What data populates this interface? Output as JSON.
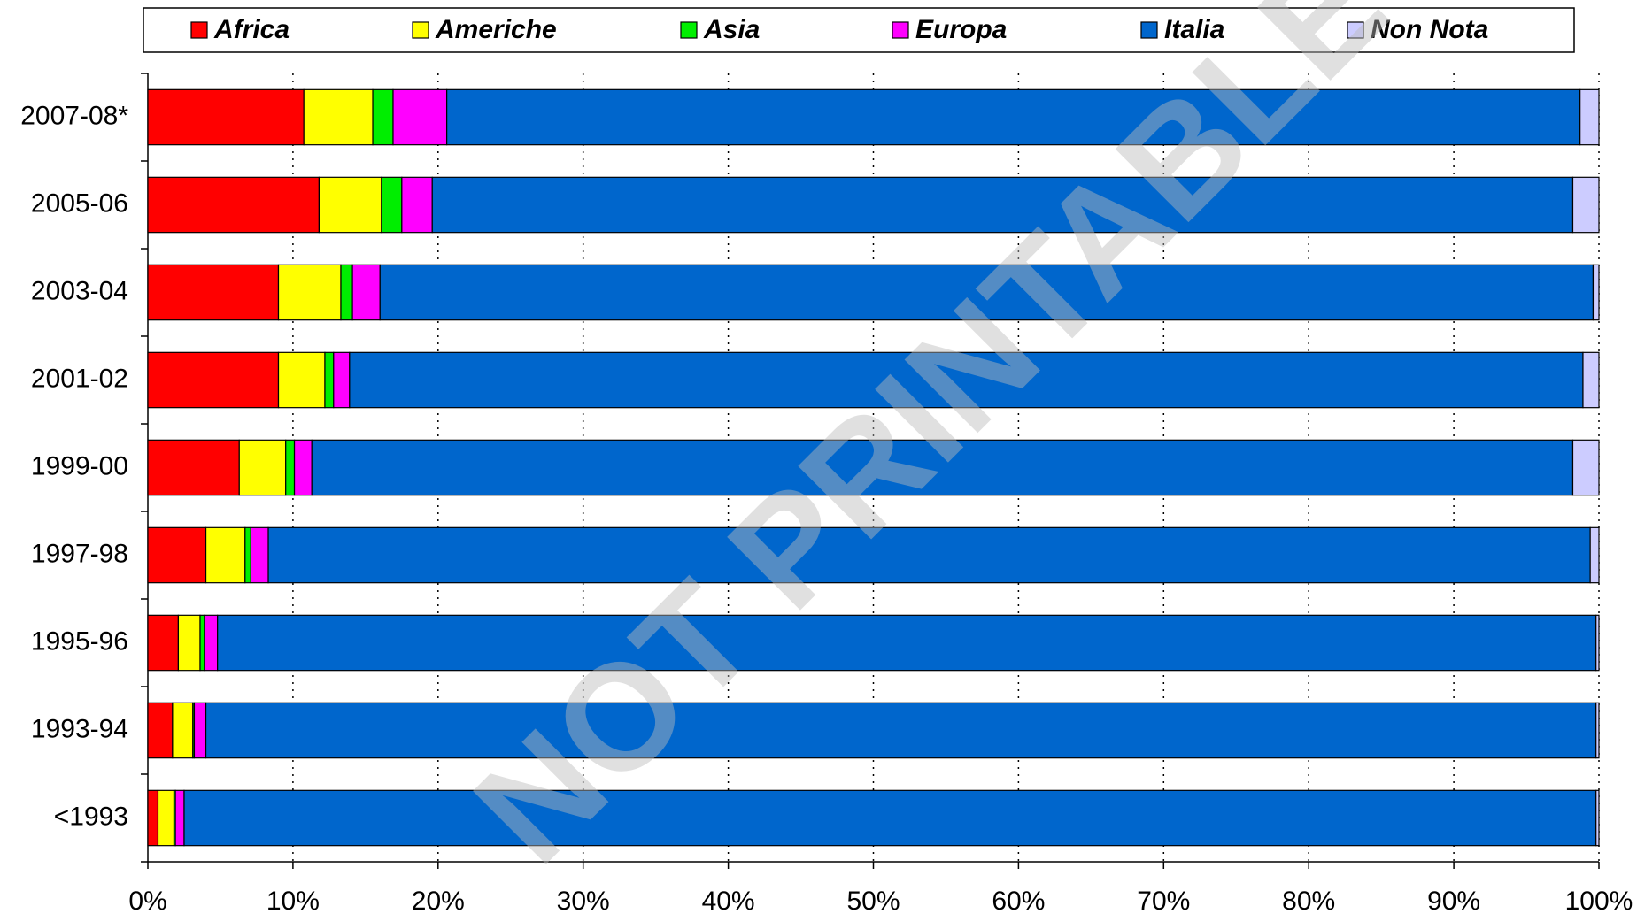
{
  "chart_data": {
    "type": "stacked-barh",
    "categories": [
      "2007-08*",
      "2005-06",
      "2003-04",
      "2001-02",
      "1999-00",
      "1997-98",
      "1995-96",
      "1993-94",
      "<1993"
    ],
    "series": [
      {
        "name": "Africa",
        "color": "#ff0000",
        "values": [
          10.75,
          11.8,
          9.0,
          9.0,
          6.3,
          4.0,
          2.1,
          1.7,
          0.7
        ]
      },
      {
        "name": "Americhe",
        "color": "#ffff00",
        "values": [
          4.75,
          4.3,
          4.3,
          3.2,
          3.2,
          2.7,
          1.5,
          1.4,
          1.1
        ]
      },
      {
        "name": "Asia",
        "color": "#00ee00",
        "values": [
          1.4,
          1.4,
          0.8,
          0.6,
          0.6,
          0.4,
          0.3,
          0.1,
          0.1
        ]
      },
      {
        "name": "Europa",
        "color": "#ff00ff",
        "values": [
          3.7,
          2.1,
          1.9,
          1.1,
          1.2,
          1.2,
          0.9,
          0.8,
          0.6
        ]
      },
      {
        "name": "Italia",
        "color": "#0066cc",
        "values": [
          78.1,
          78.6,
          83.6,
          85.0,
          86.9,
          91.1,
          95.0,
          95.8,
          97.3
        ]
      },
      {
        "name": "Non Nota",
        "color": "#ccccff",
        "values": [
          1.3,
          1.8,
          0.4,
          1.1,
          1.8,
          0.6,
          0.2,
          0.2,
          0.2
        ]
      }
    ],
    "xlim": [
      0,
      100
    ],
    "xticks": [
      {
        "value": 0,
        "label": "0%"
      },
      {
        "value": 10,
        "label": "10%"
      },
      {
        "value": 20,
        "label": "20%"
      },
      {
        "value": 30,
        "label": "30%"
      },
      {
        "value": 40,
        "label": "40%"
      },
      {
        "value": 50,
        "label": "50%"
      },
      {
        "value": 60,
        "label": "60%"
      },
      {
        "value": 70,
        "label": "70%"
      },
      {
        "value": 80,
        "label": "80%"
      },
      {
        "value": 90,
        "label": "90%"
      },
      {
        "value": 100,
        "label": "100%"
      }
    ],
    "grid": true,
    "legend": "top",
    "watermark": "NOT PRINTABLE"
  }
}
